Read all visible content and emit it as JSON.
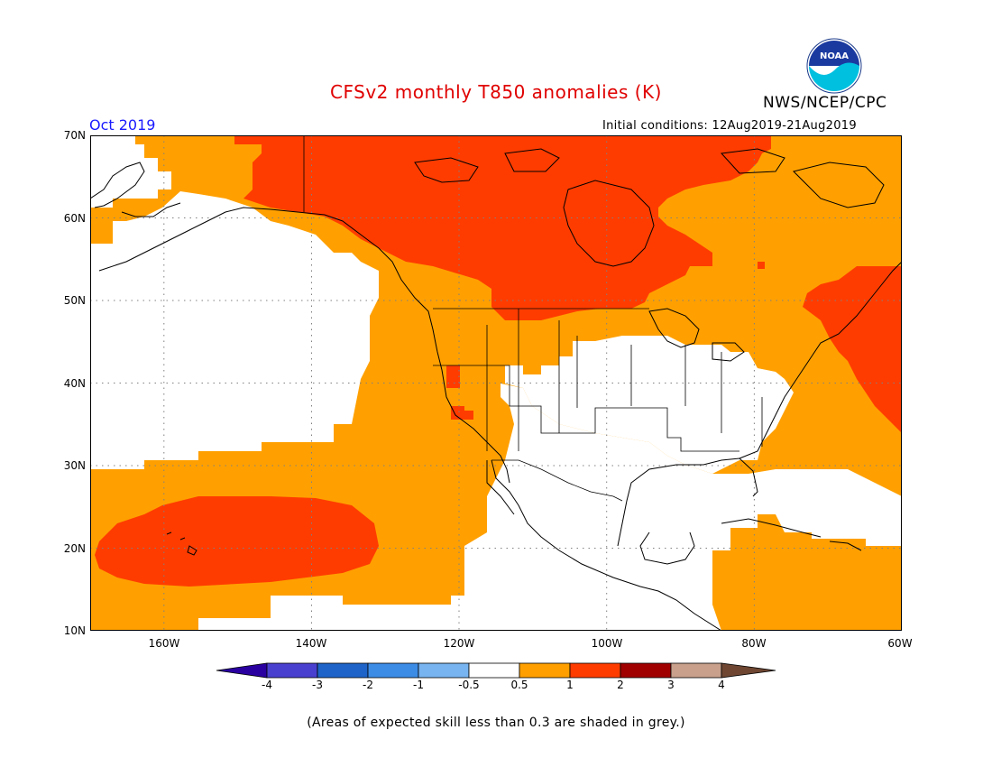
{
  "title": "CFSv2 monthly T850 anomalies (K)",
  "agency": "NWS/NCEP/CPC",
  "logo_text": "NOAA",
  "month": "Oct 2019",
  "initial_conditions": "Initial conditions: 12Aug2019-21Aug2019",
  "footnote": "(Areas of expected skill less than 0.3 are shaded in grey.)",
  "map": {
    "lat_labels": [
      "70N",
      "60N",
      "50N",
      "40N",
      "30N",
      "20N",
      "10N"
    ],
    "lon_labels": [
      "160W",
      "140W",
      "120W",
      "100W",
      "80W",
      "60W"
    ],
    "lon_range": [
      -170,
      -60
    ],
    "lat_range": [
      10,
      70
    ]
  },
  "colorbar": {
    "labels": [
      "-4",
      "-3",
      "-2",
      "-1",
      "-0.5",
      "0.5",
      "1",
      "2",
      "3",
      "4"
    ],
    "colors": [
      "#2a00a0",
      "#4a40d0",
      "#1e64c8",
      "#3c8ce6",
      "#78b4f0",
      "#ffffff",
      "#ffa000",
      "#ff3c00",
      "#a00000",
      "#c8a08c",
      "#6e4632"
    ]
  }
}
